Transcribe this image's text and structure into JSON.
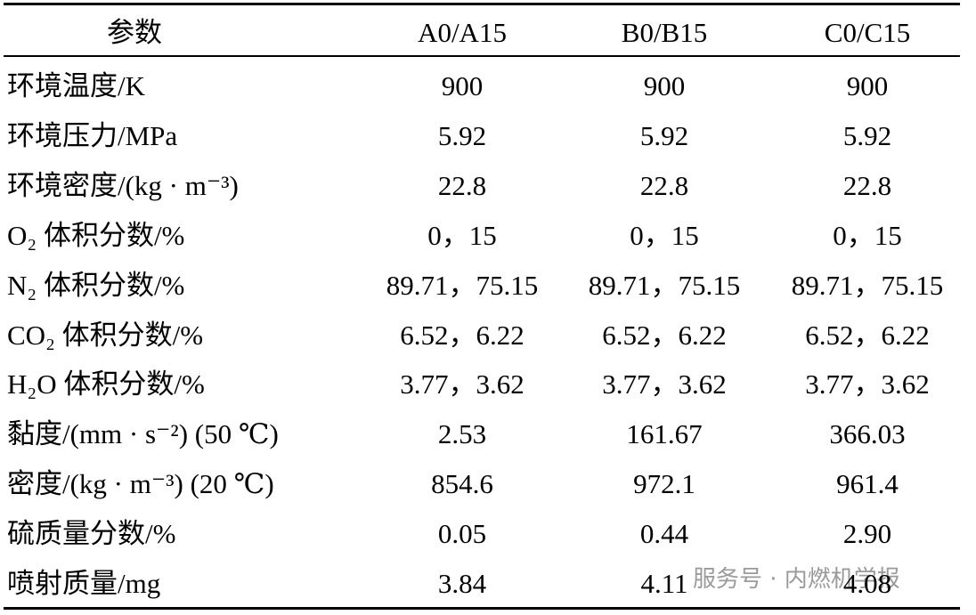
{
  "table": {
    "header": [
      "参数",
      "A0/A15",
      "B0/B15",
      "C0/C15"
    ],
    "rows": [
      [
        "环境温度/K",
        "900",
        "900",
        "900"
      ],
      [
        "环境压力/MPa",
        "5.92",
        "5.92",
        "5.92"
      ],
      [
        "环境密度/(kg · m⁻³)",
        "22.8",
        "22.8",
        "22.8"
      ],
      [
        "O₂ 体积分数/%",
        "0，15",
        "0，15",
        "0，15"
      ],
      [
        "N₂ 体积分数/%",
        "89.71，75.15",
        "89.71，75.15",
        "89.71，75.15"
      ],
      [
        "CO₂ 体积分数/%",
        "6.52，6.22",
        "6.52，6.22",
        "6.52，6.22"
      ],
      [
        "H₂O 体积分数/%",
        "3.77，3.62",
        "3.77，3.62",
        "3.77，3.62"
      ],
      [
        "黏度/(mm · s⁻²) (50 ℃)",
        "2.53",
        "161.67",
        "366.03"
      ],
      [
        "密度/(kg · m⁻³) (20 ℃)",
        "854.6",
        "972.1",
        "961.4"
      ],
      [
        "硫质量分数/%",
        "0.05",
        "0.44",
        "2.90"
      ],
      [
        "喷射质量/mg",
        "3.84",
        "4.11",
        "4.08"
      ]
    ]
  },
  "watermark": "服务号 · 内燃机学报"
}
